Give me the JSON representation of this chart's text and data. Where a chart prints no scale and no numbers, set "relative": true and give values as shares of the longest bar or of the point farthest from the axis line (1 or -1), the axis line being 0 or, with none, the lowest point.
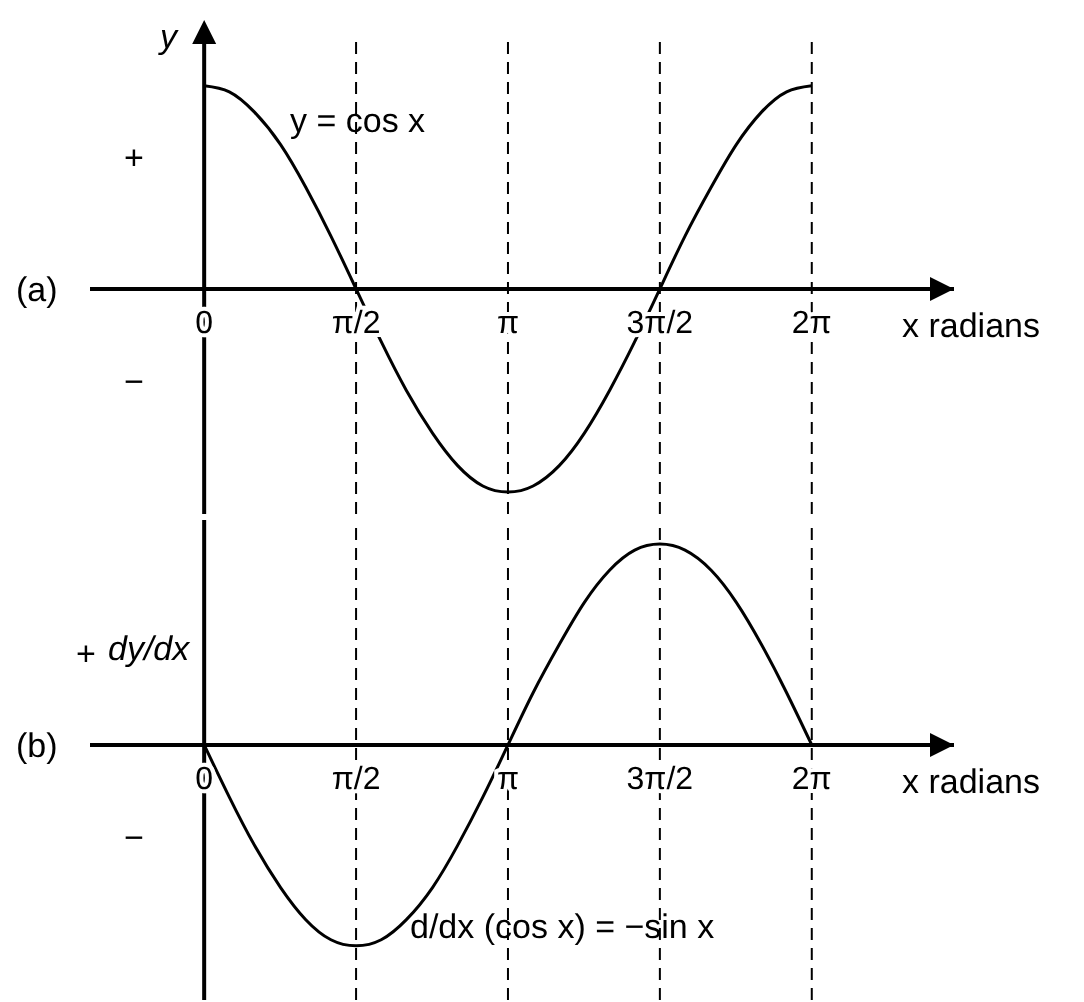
{
  "chart_data": [
    {
      "type": "line",
      "relative": true,
      "ylabel": "y",
      "xlabel": "x radians",
      "annotations": [
        "(a)",
        "+",
        "−"
      ],
      "x": [
        0,
        0.26,
        0.52,
        0.79,
        1.05,
        1.31,
        1.57,
        1.83,
        2.09,
        2.36,
        2.62,
        2.88,
        3.14,
        3.4,
        3.67,
        3.93,
        4.19,
        4.45,
        4.71,
        4.97,
        5.24,
        5.5,
        5.76,
        6.02,
        6.28
      ],
      "xlim": [
        -1.18,
        7.75
      ],
      "xticks": [
        {
          "value": 0,
          "label": "0"
        },
        {
          "value": 1.57,
          "label": "π/2"
        },
        {
          "value": 3.14,
          "label": "π"
        },
        {
          "value": 4.71,
          "label": "3π/2"
        },
        {
          "value": 6.28,
          "label": "2π"
        }
      ],
      "ref_lines": [
        {
          "axis": "x",
          "value": 1.57,
          "color": "#000000",
          "line_style": "dashed"
        },
        {
          "axis": "x",
          "value": 3.14,
          "color": "#000000",
          "line_style": "dashed"
        },
        {
          "axis": "x",
          "value": 4.71,
          "color": "#000000",
          "line_style": "dashed"
        },
        {
          "axis": "x",
          "value": 6.28,
          "color": "#000000",
          "line_style": "dashed"
        }
      ],
      "series": [
        {
          "name": "y = cos x",
          "color": "#000000",
          "values": [
            1,
            0.97,
            0.87,
            0.71,
            0.5,
            0.26,
            0,
            -0.26,
            -0.5,
            -0.71,
            -0.87,
            -0.97,
            -1,
            -0.97,
            -0.87,
            -0.71,
            -0.5,
            -0.26,
            0,
            0.26,
            0.5,
            0.71,
            0.87,
            0.97,
            1
          ]
        }
      ]
    },
    {
      "type": "line",
      "relative": true,
      "ylabel": "dy/dx",
      "xlabel": "x radians",
      "annotations": [
        "(b)",
        "+",
        "−"
      ],
      "x": [
        0,
        0.26,
        0.52,
        0.79,
        1.05,
        1.31,
        1.57,
        1.83,
        2.09,
        2.36,
        2.62,
        2.88,
        3.14,
        3.4,
        3.67,
        3.93,
        4.19,
        4.45,
        4.71,
        4.97,
        5.24,
        5.5,
        5.76,
        6.02,
        6.28
      ],
      "xlim": [
        -1.18,
        7.75
      ],
      "xticks": [
        {
          "value": 0,
          "label": "0"
        },
        {
          "value": 1.57,
          "label": "π/2"
        },
        {
          "value": 3.14,
          "label": "π"
        },
        {
          "value": 4.71,
          "label": "3π/2"
        },
        {
          "value": 6.28,
          "label": "2π"
        }
      ],
      "ref_lines": [
        {
          "axis": "x",
          "value": 1.57,
          "color": "#000000",
          "line_style": "dashed"
        },
        {
          "axis": "x",
          "value": 3.14,
          "color": "#000000",
          "line_style": "dashed"
        },
        {
          "axis": "x",
          "value": 4.71,
          "color": "#000000",
          "line_style": "dashed"
        },
        {
          "axis": "x",
          "value": 6.28,
          "color": "#000000",
          "line_style": "dashed"
        }
      ],
      "series": [
        {
          "name": "d/dx (cos x) = −sin x",
          "color": "#000000",
          "values": [
            0,
            -0.26,
            -0.5,
            -0.71,
            -0.87,
            -0.97,
            -1,
            -0.97,
            -0.87,
            -0.71,
            -0.5,
            -0.26,
            0,
            0.26,
            0.5,
            0.71,
            0.87,
            0.97,
            1,
            0.97,
            0.87,
            0.71,
            0.5,
            0.26,
            0
          ]
        }
      ]
    }
  ]
}
